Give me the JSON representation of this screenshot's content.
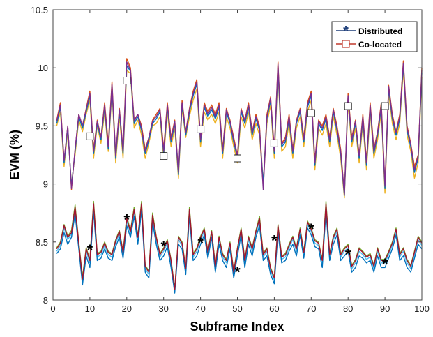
{
  "chart_data": {
    "type": "line",
    "xlabel": "Subframe Index",
    "ylabel": "EVM (%)",
    "xlim": [
      0,
      100
    ],
    "ylim": [
      8,
      10.5
    ],
    "xticks": [
      0,
      10,
      20,
      30,
      40,
      50,
      60,
      70,
      80,
      90,
      100
    ],
    "yticks": [
      8,
      8.5,
      9,
      9.5,
      10,
      10.5
    ],
    "x": [
      1,
      2,
      3,
      4,
      5,
      6,
      7,
      8,
      9,
      10,
      11,
      12,
      13,
      14,
      15,
      16,
      17,
      18,
      19,
      20,
      21,
      22,
      23,
      24,
      25,
      26,
      27,
      28,
      29,
      30,
      31,
      32,
      33,
      34,
      35,
      36,
      37,
      38,
      39,
      40,
      41,
      42,
      43,
      44,
      45,
      46,
      47,
      48,
      49,
      50,
      51,
      52,
      53,
      54,
      55,
      56,
      57,
      58,
      59,
      60,
      61,
      62,
      63,
      64,
      65,
      66,
      67,
      68,
      69,
      70,
      71,
      72,
      73,
      74,
      75,
      76,
      77,
      78,
      79,
      80,
      81,
      82,
      83,
      84,
      85,
      86,
      87,
      88,
      89,
      90,
      91,
      92,
      93,
      94,
      95,
      96,
      97,
      98,
      99,
      100
    ],
    "legend": {
      "position": "top-right",
      "entries": [
        {
          "label": "Distributed",
          "marker": "asterisk",
          "color": "#1f3f7a"
        },
        {
          "label": "Co-located",
          "marker": "square",
          "color": "#c0392b"
        }
      ]
    },
    "series": [
      {
        "group": "co-located",
        "color": "#d95319",
        "values": [
          9.55,
          9.7,
          9.2,
          9.5,
          8.95,
          9.3,
          9.6,
          9.5,
          9.65,
          9.8,
          9.3,
          9.55,
          9.4,
          9.7,
          9.35,
          9.88,
          9.25,
          9.65,
          9.3,
          10.08,
          10.0,
          9.55,
          9.6,
          9.5,
          9.3,
          9.4,
          9.55,
          9.6,
          9.65,
          9.3,
          9.7,
          9.4,
          9.55,
          9.1,
          9.72,
          9.45,
          9.65,
          9.8,
          9.9,
          9.4,
          9.7,
          9.62,
          9.68,
          9.6,
          9.7,
          9.3,
          9.65,
          9.55,
          9.4,
          9.25,
          9.65,
          9.55,
          9.7,
          9.45,
          9.6,
          9.5,
          9.0,
          9.6,
          9.75,
          9.3,
          10.05,
          9.35,
          9.4,
          9.6,
          9.3,
          9.55,
          9.65,
          9.4,
          9.7,
          9.8,
          9.2,
          9.55,
          9.5,
          9.6,
          9.4,
          9.65,
          9.5,
          9.3,
          8.92,
          9.78,
          9.4,
          9.55,
          9.25,
          9.6,
          9.2,
          9.7,
          9.3,
          9.45,
          9.7,
          9.0,
          9.85,
          9.6,
          9.45,
          9.6,
          10.06,
          9.5,
          9.35,
          9.15,
          9.25,
          10.0
        ]
      },
      {
        "group": "co-located",
        "color": "#edb120",
        "values": [
          9.5,
          9.62,
          9.15,
          9.45,
          9.0,
          9.25,
          9.55,
          9.45,
          9.6,
          9.72,
          9.22,
          9.5,
          9.35,
          9.62,
          9.28,
          9.8,
          9.18,
          9.58,
          9.22,
          9.98,
          9.95,
          9.48,
          9.55,
          9.42,
          9.22,
          9.35,
          9.5,
          9.52,
          9.58,
          9.22,
          9.62,
          9.32,
          9.48,
          9.05,
          9.65,
          9.4,
          9.58,
          9.72,
          9.82,
          9.32,
          9.62,
          9.55,
          9.6,
          9.52,
          9.62,
          9.22,
          9.58,
          9.48,
          9.32,
          9.18,
          9.58,
          9.48,
          9.62,
          9.38,
          9.52,
          9.42,
          8.98,
          9.52,
          9.68,
          9.22,
          9.96,
          9.28,
          9.32,
          9.52,
          9.22,
          9.48,
          9.58,
          9.32,
          9.62,
          9.72,
          9.12,
          9.48,
          9.42,
          9.52,
          9.32,
          9.58,
          9.42,
          9.22,
          8.88,
          9.7,
          9.32,
          9.48,
          9.18,
          9.52,
          9.12,
          9.62,
          9.22,
          9.38,
          9.62,
          8.92,
          9.78,
          9.52,
          9.38,
          9.52,
          9.98,
          9.42,
          9.28,
          9.05,
          9.18,
          9.92
        ]
      },
      {
        "group": "co-located",
        "color": "#0072bd",
        "values": [
          9.52,
          9.66,
          9.18,
          9.48,
          8.98,
          9.28,
          9.58,
          9.48,
          9.62,
          9.76,
          9.26,
          9.52,
          9.38,
          9.66,
          9.3,
          9.84,
          9.22,
          9.62,
          9.26,
          10.02,
          9.97,
          9.52,
          9.58,
          9.46,
          9.26,
          9.38,
          9.52,
          9.56,
          9.62,
          9.26,
          9.66,
          9.36,
          9.52,
          9.08,
          9.68,
          9.42,
          9.62,
          9.76,
          9.86,
          9.36,
          9.66,
          9.58,
          9.64,
          9.56,
          9.66,
          9.26,
          9.62,
          9.52,
          9.36,
          9.22,
          9.62,
          9.52,
          9.66,
          9.42,
          9.56,
          9.46,
          9.0,
          9.56,
          9.72,
          9.26,
          10.0,
          9.32,
          9.36,
          9.56,
          9.26,
          9.52,
          9.62,
          9.36,
          9.66,
          9.76,
          9.16,
          9.52,
          9.46,
          9.56,
          9.36,
          9.62,
          9.46,
          9.26,
          8.9,
          9.74,
          9.36,
          9.52,
          9.22,
          9.56,
          9.16,
          9.66,
          9.26,
          9.42,
          9.66,
          8.96,
          9.82,
          9.56,
          9.42,
          9.56,
          10.02,
          9.46,
          9.32,
          9.1,
          9.22,
          9.96
        ]
      },
      {
        "group": "co-located",
        "color": "#7e2f8e",
        "values": [
          9.54,
          9.68,
          9.2,
          9.5,
          8.96,
          9.3,
          9.6,
          9.5,
          9.64,
          9.78,
          9.28,
          9.54,
          9.4,
          9.68,
          9.32,
          9.86,
          9.24,
          9.64,
          9.28,
          10.05,
          9.98,
          9.54,
          9.6,
          9.48,
          9.28,
          9.4,
          9.54,
          9.58,
          9.64,
          9.28,
          9.68,
          9.38,
          9.54,
          9.1,
          9.7,
          9.44,
          9.64,
          9.78,
          9.88,
          9.38,
          9.68,
          9.6,
          9.66,
          9.58,
          9.68,
          9.28,
          9.64,
          9.54,
          9.38,
          9.24,
          9.64,
          9.54,
          9.68,
          9.44,
          9.58,
          9.48,
          8.95,
          9.58,
          9.74,
          9.28,
          10.03,
          9.34,
          9.38,
          9.58,
          9.28,
          9.54,
          9.64,
          9.38,
          9.68,
          9.78,
          9.18,
          9.54,
          9.48,
          9.58,
          9.38,
          9.64,
          9.48,
          9.28,
          8.91,
          9.76,
          9.38,
          9.54,
          9.24,
          9.58,
          9.18,
          9.68,
          9.28,
          9.44,
          9.68,
          8.98,
          9.84,
          9.58,
          9.44,
          9.58,
          10.04,
          9.48,
          9.34,
          9.12,
          9.24,
          9.98
        ]
      },
      {
        "group": "distributed",
        "color": "#77ac30",
        "values": [
          8.45,
          8.5,
          8.65,
          8.55,
          8.6,
          8.82,
          8.5,
          8.2,
          8.45,
          8.35,
          8.85,
          8.4,
          8.42,
          8.5,
          8.42,
          8.4,
          8.52,
          8.6,
          8.42,
          8.72,
          8.6,
          8.8,
          8.55,
          8.85,
          8.3,
          8.25,
          8.75,
          8.55,
          8.4,
          8.45,
          8.52,
          8.35,
          8.1,
          8.55,
          8.5,
          8.28,
          8.8,
          8.4,
          8.45,
          8.55,
          8.62,
          8.42,
          8.6,
          8.3,
          8.55,
          8.4,
          8.35,
          8.5,
          8.25,
          8.45,
          8.62,
          8.35,
          8.55,
          8.45,
          8.6,
          8.72,
          8.4,
          8.45,
          8.28,
          8.2,
          8.65,
          8.38,
          8.4,
          8.48,
          8.55,
          8.45,
          8.62,
          8.42,
          8.68,
          8.62,
          8.52,
          8.5,
          8.35,
          8.85,
          8.4,
          8.55,
          8.62,
          8.4,
          8.45,
          8.48,
          8.3,
          8.35,
          8.45,
          8.42,
          8.38,
          8.4,
          8.3,
          8.45,
          8.35,
          8.35,
          8.42,
          8.5,
          8.62,
          8.4,
          8.45,
          8.35,
          8.3,
          8.42,
          8.55,
          8.5
        ]
      },
      {
        "group": "distributed",
        "color": "#4dbeee",
        "values": [
          8.42,
          8.47,
          8.62,
          8.52,
          8.57,
          8.78,
          8.47,
          8.16,
          8.42,
          8.32,
          8.8,
          8.37,
          8.39,
          8.47,
          8.39,
          8.37,
          8.49,
          8.57,
          8.39,
          8.68,
          8.57,
          8.76,
          8.52,
          8.81,
          8.27,
          8.22,
          8.71,
          8.52,
          8.37,
          8.42,
          8.49,
          8.32,
          8.08,
          8.52,
          8.47,
          8.25,
          8.76,
          8.37,
          8.42,
          8.52,
          8.59,
          8.39,
          8.57,
          8.27,
          8.52,
          8.37,
          8.32,
          8.47,
          8.22,
          8.42,
          8.59,
          8.32,
          8.52,
          8.42,
          8.57,
          8.68,
          8.37,
          8.42,
          8.25,
          8.17,
          8.62,
          8.35,
          8.37,
          8.45,
          8.52,
          8.42,
          8.59,
          8.39,
          8.65,
          8.59,
          8.49,
          8.47,
          8.32,
          8.81,
          8.37,
          8.52,
          8.59,
          8.37,
          8.42,
          8.45,
          8.27,
          8.32,
          8.42,
          8.39,
          8.35,
          8.37,
          8.27,
          8.42,
          8.32,
          8.32,
          8.39,
          8.47,
          8.59,
          8.37,
          8.42,
          8.32,
          8.27,
          8.39,
          8.52,
          8.47
        ]
      },
      {
        "group": "distributed",
        "color": "#0072bd",
        "values": [
          8.4,
          8.44,
          8.58,
          8.48,
          8.54,
          8.74,
          8.44,
          8.13,
          8.38,
          8.28,
          8.76,
          8.34,
          8.36,
          8.44,
          8.36,
          8.34,
          8.46,
          8.54,
          8.36,
          8.64,
          8.54,
          8.72,
          8.48,
          8.77,
          8.24,
          8.19,
          8.67,
          8.48,
          8.34,
          8.38,
          8.46,
          8.28,
          8.06,
          8.48,
          8.44,
          8.22,
          8.72,
          8.34,
          8.38,
          8.48,
          8.56,
          8.36,
          8.54,
          8.24,
          8.48,
          8.34,
          8.28,
          8.44,
          8.19,
          8.38,
          8.56,
          8.28,
          8.48,
          8.38,
          8.54,
          8.64,
          8.34,
          8.38,
          8.22,
          8.14,
          8.58,
          8.32,
          8.34,
          8.42,
          8.48,
          8.38,
          8.56,
          8.36,
          8.62,
          8.56,
          8.46,
          8.44,
          8.28,
          8.77,
          8.34,
          8.48,
          8.56,
          8.34,
          8.38,
          8.42,
          8.24,
          8.28,
          8.38,
          8.36,
          8.32,
          8.34,
          8.24,
          8.38,
          8.28,
          8.28,
          8.36,
          8.44,
          8.56,
          8.34,
          8.38,
          8.28,
          8.24,
          8.36,
          8.48,
          8.44
        ]
      },
      {
        "group": "distributed",
        "color": "#a2142f",
        "values": [
          8.44,
          8.49,
          8.64,
          8.54,
          8.58,
          8.8,
          8.49,
          8.18,
          8.44,
          8.34,
          8.83,
          8.39,
          8.41,
          8.49,
          8.41,
          8.39,
          8.51,
          8.59,
          8.41,
          8.7,
          8.59,
          8.78,
          8.54,
          8.83,
          8.29,
          8.24,
          8.73,
          8.54,
          8.39,
          8.44,
          8.51,
          8.34,
          8.09,
          8.54,
          8.49,
          8.27,
          8.78,
          8.39,
          8.44,
          8.54,
          8.61,
          8.41,
          8.59,
          8.29,
          8.54,
          8.39,
          8.34,
          8.49,
          8.24,
          8.44,
          8.61,
          8.34,
          8.54,
          8.44,
          8.59,
          8.7,
          8.39,
          8.44,
          8.27,
          8.19,
          8.64,
          8.37,
          8.39,
          8.47,
          8.54,
          8.44,
          8.61,
          8.41,
          8.67,
          8.61,
          8.51,
          8.49,
          8.34,
          8.83,
          8.39,
          8.54,
          8.61,
          8.39,
          8.44,
          8.47,
          8.29,
          8.34,
          8.44,
          8.41,
          8.37,
          8.39,
          8.29,
          8.44,
          8.34,
          8.34,
          8.41,
          8.49,
          8.61,
          8.39,
          8.44,
          8.34,
          8.29,
          8.41,
          8.54,
          8.49
        ]
      }
    ],
    "markers": {
      "distributed": {
        "x": [
          10,
          20,
          30,
          40,
          50,
          60,
          70,
          80,
          90
        ],
        "y": [
          8.44,
          8.7,
          8.47,
          8.5,
          8.25,
          8.52,
          8.62,
          8.4,
          8.32
        ]
      },
      "co-located": {
        "x": [
          10,
          20,
          30,
          40,
          50,
          60,
          70,
          80,
          90
        ],
        "y": [
          9.41,
          9.89,
          9.24,
          9.47,
          9.22,
          9.35,
          9.61,
          9.67,
          9.67
        ]
      }
    }
  }
}
